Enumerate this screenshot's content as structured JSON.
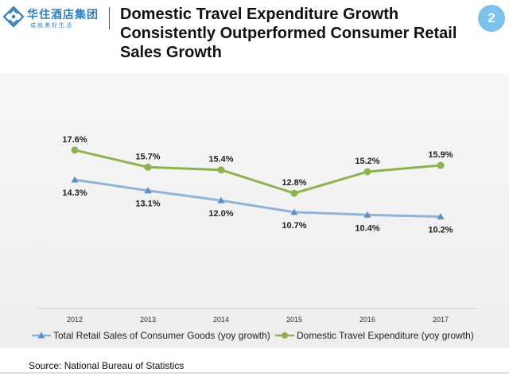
{
  "logo": {
    "name_cn": "华住酒店集团",
    "tagline_cn": "成就美好生活",
    "brand_color": "#2f7fbf"
  },
  "title": "Domestic Travel Expenditure Growth Consistently Outperformed Consumer  Retail Sales Growth",
  "page_number": "2",
  "source": "Source: National Bureau of Statistics",
  "chart_data": {
    "type": "line",
    "categories": [
      "2012",
      "2013",
      "2014",
      "2015",
      "2016",
      "2017"
    ],
    "series": [
      {
        "name": "Domestic Travel Expenditure (yoy growth)",
        "values": [
          17.6,
          15.7,
          15.4,
          12.8,
          15.2,
          15.9
        ],
        "labels": [
          "17.6%",
          "15.7%",
          "15.4%",
          "12.8%",
          "15.2%",
          "15.9%"
        ],
        "color": "#8db34a",
        "marker": "circle",
        "label_position": "above"
      },
      {
        "name": "Total Retail Sales of Consumer Goods (yoy growth)",
        "values": [
          14.3,
          13.1,
          12.0,
          10.7,
          10.4,
          10.2
        ],
        "labels": [
          "14.3%",
          "13.1%",
          "12.0%",
          "10.7%",
          "10.4%",
          "10.2%"
        ],
        "color": "#8fb3d9",
        "marker": "triangle",
        "label_position": "below"
      }
    ],
    "ylim": [
      0,
      22
    ],
    "grid": false,
    "legend": "bottom"
  }
}
